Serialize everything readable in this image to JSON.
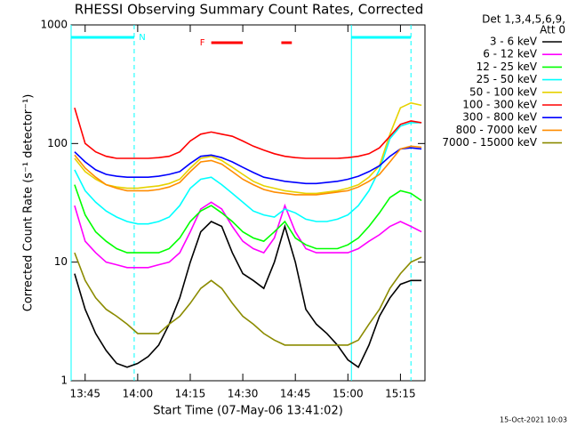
{
  "chart_data": {
    "type": "line",
    "title": "RHESSI Observing Summary Count Rates, Corrected",
    "xlabel": "Start Time (07-May-06 13:41:02)",
    "ylabel": "Corrected Count Rate (s⁻¹ detector⁻¹)",
    "legend_title": [
      "Det 1,3,4,5,6,9,",
      "Att 0"
    ],
    "footer": "15-Oct-2021 10:03",
    "log_y": true,
    "legend": "outside-right",
    "xlim": [
      "13:41",
      "15:22"
    ],
    "xticks": [
      "13:45",
      "14:00",
      "14:15",
      "14:30",
      "14:45",
      "15:00",
      "15:15"
    ],
    "ylim": [
      1,
      1000
    ],
    "yticks": [
      1,
      10,
      100,
      1000
    ],
    "annotations": [
      {
        "label": "N",
        "color": "#00ffff",
        "intervals": [
          [
            "13:41",
            "13:59"
          ],
          [
            "15:01",
            "15:18"
          ]
        ]
      },
      {
        "label": "F",
        "color": "#ff0000",
        "intervals": [
          [
            "14:21",
            "14:30"
          ],
          [
            "14:41",
            "14:44"
          ]
        ]
      }
    ],
    "x": [
      "13:42",
      "13:45",
      "13:48",
      "13:51",
      "13:54",
      "13:57",
      "14:00",
      "14:03",
      "14:06",
      "14:09",
      "14:12",
      "14:15",
      "14:18",
      "14:21",
      "14:24",
      "14:27",
      "14:30",
      "14:33",
      "14:36",
      "14:39",
      "14:42",
      "14:45",
      "14:48",
      "14:51",
      "14:54",
      "14:57",
      "15:00",
      "15:03",
      "15:06",
      "15:09",
      "15:12",
      "15:15",
      "15:18",
      "15:21"
    ],
    "series": [
      {
        "name": "3 - 6 keV",
        "color": "#000000",
        "values": [
          8,
          4,
          2.5,
          1.8,
          1.4,
          1.3,
          1.4,
          1.6,
          2,
          3,
          5,
          10,
          18,
          22,
          20,
          12,
          8,
          7,
          6,
          10,
          20,
          10,
          4,
          3,
          2.5,
          2,
          1.5,
          1.3,
          2,
          3.5,
          5,
          6.5,
          7,
          7
        ]
      },
      {
        "name": "6 - 12 keV",
        "color": "#ff00ff",
        "values": [
          30,
          15,
          12,
          10,
          9.5,
          9,
          9,
          9,
          9.5,
          10,
          12,
          18,
          28,
          32,
          28,
          20,
          15,
          13,
          12,
          16,
          30,
          18,
          13,
          12,
          12,
          12,
          12,
          13,
          15,
          17,
          20,
          22,
          20,
          18
        ]
      },
      {
        "name": "12 - 25 keV",
        "color": "#00ff00",
        "values": [
          45,
          25,
          18,
          15,
          13,
          12,
          12,
          12,
          12,
          13,
          16,
          22,
          27,
          30,
          26,
          22,
          18,
          16,
          15,
          18,
          22,
          16,
          14,
          13,
          13,
          13,
          14,
          16,
          20,
          26,
          35,
          40,
          38,
          33
        ]
      },
      {
        "name": "25 - 50 keV",
        "color": "#00ffff",
        "values": [
          60,
          40,
          32,
          27,
          24,
          22,
          21,
          21,
          22,
          24,
          30,
          42,
          50,
          52,
          45,
          38,
          32,
          27,
          25,
          24,
          28,
          26,
          23,
          22,
          22,
          23,
          25,
          30,
          40,
          60,
          110,
          140,
          150,
          150
        ]
      },
      {
        "name": "50 - 100 keV",
        "color": "#e6d200",
        "values": [
          75,
          58,
          50,
          45,
          43,
          42,
          42,
          43,
          44,
          46,
          50,
          62,
          75,
          78,
          72,
          63,
          55,
          48,
          44,
          42,
          40,
          39,
          38,
          38,
          39,
          40,
          42,
          45,
          52,
          65,
          120,
          200,
          220,
          210
        ]
      },
      {
        "name": "100 - 300 keV",
        "color": "#ff0000",
        "values": [
          200,
          100,
          85,
          78,
          75,
          75,
          75,
          75,
          76,
          78,
          85,
          105,
          120,
          125,
          120,
          115,
          105,
          95,
          88,
          82,
          78,
          76,
          75,
          75,
          75,
          75,
          76,
          78,
          82,
          92,
          115,
          145,
          155,
          150
        ]
      },
      {
        "name": "300 - 800 keV",
        "color": "#0000ff",
        "values": [
          85,
          70,
          60,
          55,
          53,
          52,
          52,
          52,
          53,
          55,
          58,
          68,
          78,
          80,
          76,
          70,
          63,
          57,
          52,
          50,
          48,
          47,
          46,
          46,
          47,
          48,
          50,
          53,
          58,
          65,
          78,
          90,
          92,
          90
        ]
      },
      {
        "name": "800 - 7000 keV",
        "color": "#ff8c00",
        "values": [
          80,
          62,
          52,
          45,
          42,
          40,
          40,
          40,
          41,
          43,
          47,
          58,
          70,
          72,
          67,
          58,
          50,
          45,
          41,
          39,
          38,
          37,
          37,
          37,
          38,
          39,
          40,
          43,
          48,
          55,
          70,
          90,
          95,
          93
        ]
      },
      {
        "name": "7000 - 15000 keV",
        "color": "#8b8b00",
        "values": [
          12,
          7,
          5,
          4,
          3.5,
          3,
          2.5,
          2.5,
          2.5,
          3,
          3.5,
          4.5,
          6,
          7,
          6,
          4.5,
          3.5,
          3,
          2.5,
          2.2,
          2,
          2,
          2,
          2,
          2,
          2,
          2,
          2.2,
          3,
          4,
          6,
          8,
          10,
          11
        ]
      }
    ]
  }
}
